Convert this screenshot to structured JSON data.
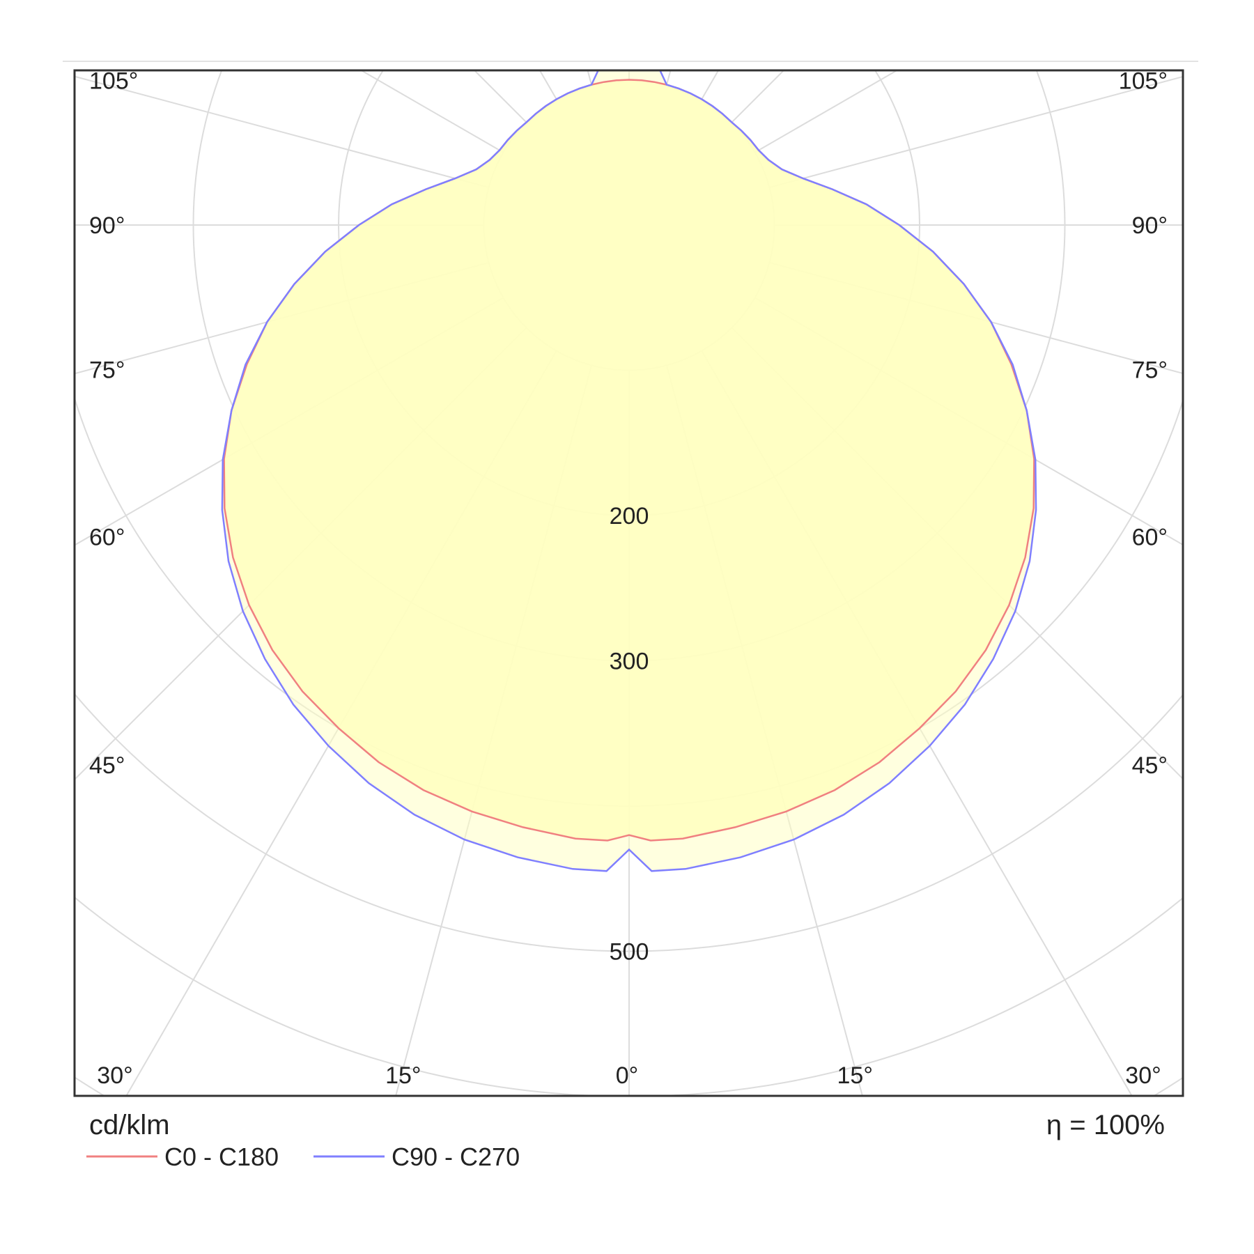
{
  "chart_data": {
    "type": "polar",
    "unit_label": "cd/klm",
    "efficiency_label": "η = 100%",
    "radial_ticks": [
      {
        "value": 200,
        "label": "200"
      },
      {
        "value": 300,
        "label": "300"
      },
      {
        "value": 500,
        "label": "500"
      }
    ],
    "radial_circles": [
      100,
      200,
      300,
      400,
      500,
      600,
      700
    ],
    "angle_labels": [
      {
        "angle": 105,
        "label": "105°"
      },
      {
        "angle": 90,
        "label": "90°"
      },
      {
        "angle": 75,
        "label": "75°"
      },
      {
        "angle": 60,
        "label": "60°"
      },
      {
        "angle": 45,
        "label": "45°"
      },
      {
        "angle": 30,
        "label": "30°"
      },
      {
        "angle": 15,
        "label": "15°"
      },
      {
        "angle": 0,
        "label": "0°"
      }
    ],
    "series": [
      {
        "name": "C0 - C180",
        "color": "#f08080",
        "angles": [
          0,
          2,
          5,
          10,
          15,
          20,
          25,
          30,
          35,
          40,
          45,
          50,
          55,
          60,
          65,
          70,
          75,
          80,
          85,
          90,
          95,
          100,
          105,
          110,
          115,
          120,
          125,
          130,
          135,
          140,
          145,
          150,
          155,
          160,
          165,
          170,
          175,
          180
        ],
        "values": [
          420,
          424,
          424,
          421,
          418,
          414,
          408,
          400,
          392,
          382,
          370,
          356,
          340,
          322,
          302,
          280,
          258,
          234,
          210,
          186,
          164,
          142,
          124,
          112,
          106,
          103,
          102,
          101,
          100,
          100,
          100,
          100,
          100,
          100,
          100,
          100,
          100,
          100
        ]
      },
      {
        "name": "C90 - C270",
        "color": "#7f7fff",
        "angles": [
          0,
          2,
          5,
          10,
          15,
          20,
          25,
          30,
          35,
          40,
          45,
          50,
          55,
          60,
          65,
          70,
          75,
          80,
          85,
          90,
          95,
          100,
          105,
          110,
          115,
          120,
          125,
          130,
          135,
          140,
          145,
          150,
          155,
          160,
          165,
          170,
          175,
          180
        ],
        "values": [
          430,
          445,
          445,
          442,
          438,
          432,
          424,
          414,
          403,
          390,
          376,
          360,
          342,
          323,
          302,
          281,
          258,
          234,
          210,
          186,
          164,
          142,
          124,
          112,
          106,
          103,
          102,
          101,
          100,
          100,
          100,
          100,
          100,
          100,
          100,
          112,
          110,
          110
        ]
      }
    ],
    "fill_color": "#ffffc0",
    "grid": true,
    "legend_position": "bottom-left"
  }
}
